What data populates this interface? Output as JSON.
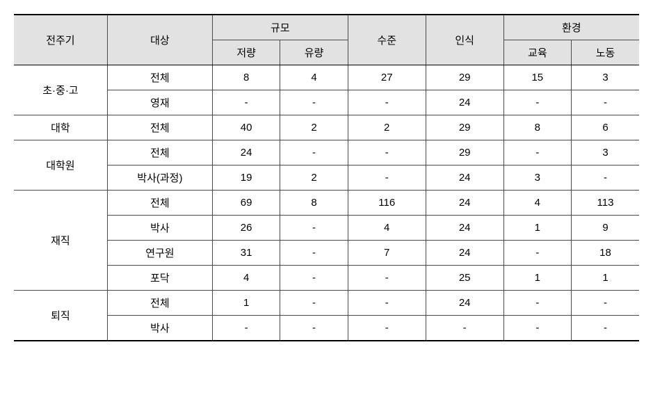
{
  "headers": {
    "col0": "전주기",
    "col1": "대상",
    "scaleGroup": "규모",
    "scale_sub1": "저량",
    "scale_sub2": "유량",
    "level": "수준",
    "perception": "인식",
    "envGroup": "환경",
    "env_sub1": "교육",
    "env_sub2": "노동"
  },
  "groups": [
    {
      "label": "초·중·고",
      "rows": [
        {
          "target": "전체",
          "c": [
            "8",
            "4",
            "27",
            "29",
            "15",
            "3"
          ]
        },
        {
          "target": "영재",
          "c": [
            "-",
            "-",
            "-",
            "24",
            "-",
            "-"
          ]
        }
      ]
    },
    {
      "label": "대학",
      "rows": [
        {
          "target": "전체",
          "c": [
            "40",
            "2",
            "2",
            "29",
            "8",
            "6"
          ]
        }
      ]
    },
    {
      "label": "대학원",
      "rows": [
        {
          "target": "전체",
          "c": [
            "24",
            "-",
            "-",
            "29",
            "-",
            "3"
          ]
        },
        {
          "target": "박사(과정)",
          "c": [
            "19",
            "2",
            "-",
            "24",
            "3",
            "-"
          ]
        }
      ]
    },
    {
      "label": "재직",
      "rows": [
        {
          "target": "전체",
          "c": [
            "69",
            "8",
            "116",
            "24",
            "4",
            "113"
          ]
        },
        {
          "target": "박사",
          "c": [
            "26",
            "-",
            "4",
            "24",
            "1",
            "9"
          ]
        },
        {
          "target": "연구원",
          "c": [
            "31",
            "-",
            "7",
            "24",
            "-",
            "18"
          ]
        },
        {
          "target": "포닥",
          "c": [
            "4",
            "-",
            "-",
            "25",
            "1",
            "1"
          ]
        }
      ]
    },
    {
      "label": "퇴직",
      "rows": [
        {
          "target": "전체",
          "c": [
            "1",
            "-",
            "-",
            "24",
            "-",
            "-"
          ]
        },
        {
          "target": "박사",
          "c": [
            "-",
            "-",
            "-",
            "-",
            "-",
            "-"
          ]
        }
      ]
    }
  ],
  "colWidths": [
    "120",
    "135",
    "87",
    "87",
    "100",
    "100",
    "87",
    "87"
  ]
}
